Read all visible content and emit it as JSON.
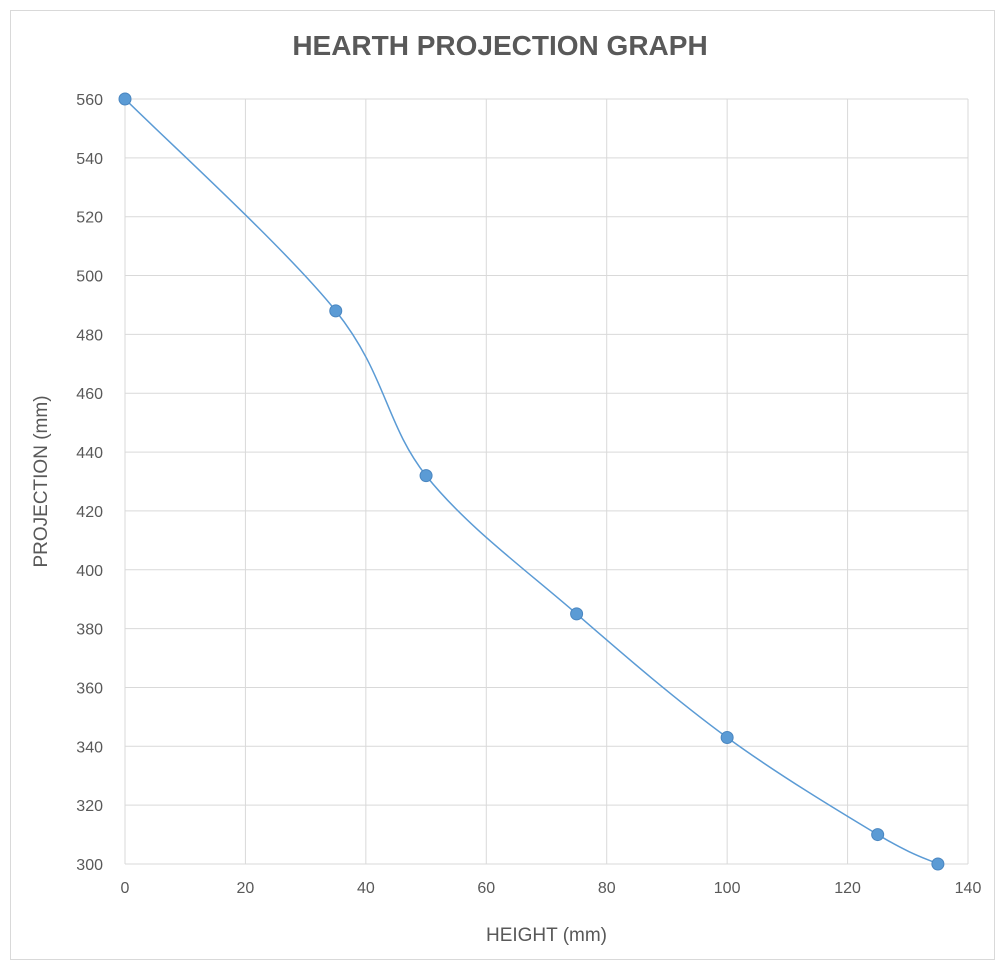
{
  "chart_data": {
    "type": "scatter",
    "title": "HEARTH PROJECTION GRAPH",
    "xlabel": "HEIGHT (mm)",
    "ylabel": "PROJECTION (mm)",
    "xlim": [
      0,
      140
    ],
    "ylim": [
      300,
      560
    ],
    "x_ticks": [
      0,
      20,
      40,
      60,
      80,
      100,
      120,
      140
    ],
    "y_ticks": [
      300,
      320,
      340,
      360,
      380,
      400,
      420,
      440,
      460,
      480,
      500,
      520,
      540,
      560
    ],
    "grid": true,
    "legend": "none",
    "line_style": "smoothed lines with markers",
    "series": [
      {
        "color": "#5b9bd5",
        "x": [
          0,
          35,
          50,
          75,
          100,
          125,
          135
        ],
        "y": [
          560,
          488,
          432,
          385,
          343,
          310,
          300
        ]
      }
    ]
  }
}
